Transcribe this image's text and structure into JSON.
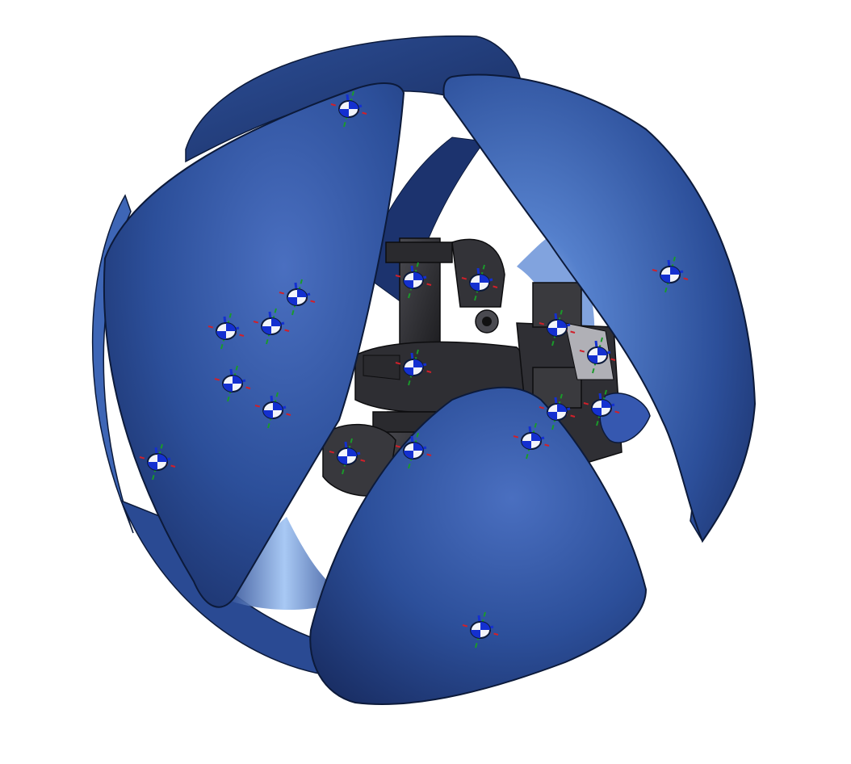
{
  "viewport": {
    "background": "#ffffff"
  },
  "model": {
    "colors": {
      "panel_light": "#4a6fc0",
      "panel_mid": "#2c4f9a",
      "panel_dark": "#1a2f66",
      "panel_edge": "#0c1a3a",
      "rim_highlight": "#9fc3f3",
      "mechanism_dark": "#1f1f22",
      "mechanism_mid": "#3a3a3e",
      "mechanism_light": "#6a6a70",
      "axis_x": "#d0202a",
      "axis_y": "#1a9a2a",
      "axis_z": "#1430d0"
    },
    "mate_connectors": [
      {
        "name": "mate-connector-1"
      },
      {
        "name": "mate-connector-2"
      },
      {
        "name": "mate-connector-3"
      },
      {
        "name": "mate-connector-4"
      },
      {
        "name": "mate-connector-5"
      },
      {
        "name": "mate-connector-6"
      },
      {
        "name": "mate-connector-7"
      },
      {
        "name": "mate-connector-8"
      },
      {
        "name": "mate-connector-9"
      },
      {
        "name": "mate-connector-10"
      },
      {
        "name": "mate-connector-11"
      },
      {
        "name": "mate-connector-12"
      },
      {
        "name": "mate-connector-13"
      },
      {
        "name": "mate-connector-14"
      },
      {
        "name": "mate-connector-15"
      },
      {
        "name": "mate-connector-16"
      },
      {
        "name": "mate-connector-17"
      }
    ]
  }
}
